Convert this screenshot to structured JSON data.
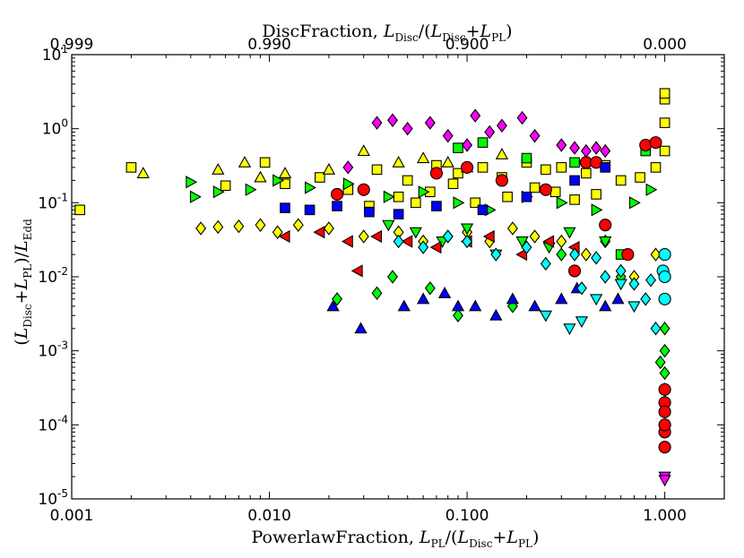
{
  "chart_data": {
    "type": "scatter",
    "xscale": "log",
    "yscale": "log",
    "xlim": [
      0.001,
      2.0
    ],
    "ylim": [
      1e-05,
      10
    ],
    "grid": false,
    "legend": "none",
    "bottom_xlabel": "PowerlawFraction, L_PL/(L_Disc+L_PL)",
    "left_ylabel": "(L_Disc+L_PL)/L_Edd",
    "top_xlabel": "DiscFraction, L_Disc/(L_Disc+L_PL)",
    "xticks": [
      {
        "value": 0.001,
        "label": "0.001"
      },
      {
        "value": 0.01,
        "label": "0.010"
      },
      {
        "value": 0.1,
        "label": "0.100"
      },
      {
        "value": 1.0,
        "label": "1.000"
      }
    ],
    "top_ticks": [
      {
        "value": 0.001,
        "label": "0.999"
      },
      {
        "value": 0.01,
        "label": "0.990"
      },
      {
        "value": 0.1,
        "label": "0.900"
      },
      {
        "value": 1.0,
        "label": "0.000"
      }
    ],
    "yticks": [
      {
        "value": 1e-05,
        "base": "10",
        "exp": "-5"
      },
      {
        "value": 0.0001,
        "base": "10",
        "exp": "-4"
      },
      {
        "value": 0.001,
        "base": "10",
        "exp": "-3"
      },
      {
        "value": 0.01,
        "base": "10",
        "exp": "-2"
      },
      {
        "value": 0.1,
        "base": "10",
        "exp": "-1"
      },
      {
        "value": 1,
        "base": "10",
        "exp": "0"
      },
      {
        "value": 10,
        "base": "10",
        "exp": "1"
      }
    ],
    "series": [
      {
        "name": "yellow-squares",
        "marker": "square",
        "color": "#ffff00",
        "x": [
          0.0011,
          0.002,
          0.006,
          0.0095,
          0.012,
          0.018,
          0.025,
          0.035,
          0.05,
          0.07,
          0.09,
          0.12,
          0.15,
          0.2,
          0.25,
          0.3,
          0.4,
          0.5,
          0.6,
          0.75,
          0.9,
          1.0,
          1.0,
          1.0,
          1.0,
          0.045,
          0.065,
          0.085,
          0.11,
          0.16,
          0.22,
          0.28,
          0.35,
          0.45,
          0.032,
          0.055
        ],
        "y": [
          0.08,
          0.3,
          0.17,
          0.35,
          0.18,
          0.22,
          0.15,
          0.28,
          0.2,
          0.32,
          0.25,
          0.3,
          0.22,
          0.35,
          0.28,
          0.3,
          0.25,
          0.32,
          0.2,
          0.22,
          0.3,
          0.5,
          1.2,
          2.5,
          3.0,
          0.12,
          0.14,
          0.18,
          0.1,
          0.12,
          0.16,
          0.14,
          0.11,
          0.13,
          0.09,
          0.1
        ]
      },
      {
        "name": "yellow-diamonds",
        "marker": "diamond",
        "color": "#ffff00",
        "x": [
          0.0045,
          0.0055,
          0.007,
          0.009,
          0.011,
          0.014,
          0.02,
          0.03,
          0.045,
          0.06,
          0.08,
          0.1,
          0.13,
          0.17,
          0.22,
          0.3,
          0.4,
          0.5,
          0.7,
          0.9
        ],
        "y": [
          0.045,
          0.047,
          0.048,
          0.05,
          0.04,
          0.05,
          0.045,
          0.035,
          0.04,
          0.03,
          0.035,
          0.04,
          0.03,
          0.045,
          0.035,
          0.03,
          0.02,
          0.03,
          0.01,
          0.02
        ]
      },
      {
        "name": "yellow-triangles-up",
        "marker": "triangle-up",
        "color": "#ffff00",
        "x": [
          0.0023,
          0.0055,
          0.0075,
          0.009,
          0.012,
          0.02,
          0.03,
          0.045,
          0.06,
          0.08,
          0.1,
          0.15
        ],
        "y": [
          0.25,
          0.28,
          0.35,
          0.22,
          0.25,
          0.28,
          0.5,
          0.35,
          0.4,
          0.35,
          0.3,
          0.45
        ]
      },
      {
        "name": "green-triangles-right",
        "marker": "triangle-right",
        "color": "#00ff00",
        "x": [
          0.004,
          0.0042,
          0.0055,
          0.008,
          0.011,
          0.016,
          0.025,
          0.04,
          0.06,
          0.09,
          0.13,
          0.2,
          0.3,
          0.45,
          0.7,
          0.85
        ],
        "y": [
          0.19,
          0.12,
          0.14,
          0.15,
          0.2,
          0.16,
          0.18,
          0.12,
          0.14,
          0.1,
          0.08,
          0.12,
          0.1,
          0.08,
          0.1,
          0.15
        ]
      },
      {
        "name": "green-squares",
        "marker": "square",
        "color": "#00ff00",
        "x": [
          0.09,
          0.12,
          0.2,
          0.35,
          0.6,
          0.8
        ],
        "y": [
          0.55,
          0.65,
          0.4,
          0.35,
          0.02,
          0.5
        ]
      },
      {
        "name": "green-diamonds",
        "marker": "diamond",
        "color": "#00ff00",
        "x": [
          0.022,
          0.035,
          0.042,
          0.065,
          0.09,
          0.17,
          0.3,
          0.6,
          0.95,
          1.0,
          1.0,
          1.0,
          1.0,
          1.0,
          1.0
        ],
        "y": [
          0.005,
          0.006,
          0.01,
          0.007,
          0.003,
          0.004,
          0.02,
          0.01,
          0.0007,
          0.002,
          0.0005,
          0.0003,
          0.0002,
          0.00015,
          0.001
        ]
      },
      {
        "name": "green-triangles-down",
        "marker": "triangle-down",
        "color": "#00ff00",
        "x": [
          0.04,
          0.055,
          0.075,
          0.1,
          0.14,
          0.19,
          0.26,
          0.33,
          0.5
        ],
        "y": [
          0.05,
          0.04,
          0.03,
          0.045,
          0.02,
          0.03,
          0.025,
          0.04,
          0.03
        ]
      },
      {
        "name": "red-circles",
        "marker": "circle",
        "color": "#ff0000",
        "x": [
          0.022,
          0.03,
          0.07,
          0.1,
          0.15,
          0.25,
          0.4,
          0.5,
          0.65,
          0.8,
          0.9,
          1.0,
          1.0,
          1.0,
          1.0,
          1.0,
          1.0,
          0.35,
          0.45
        ],
        "y": [
          0.13,
          0.15,
          0.25,
          0.3,
          0.2,
          0.15,
          0.35,
          0.05,
          0.02,
          0.6,
          0.65,
          8e-05,
          5e-05,
          0.0001,
          0.0002,
          0.0003,
          0.00015,
          0.012,
          0.35
        ]
      },
      {
        "name": "red-triangles-left",
        "marker": "triangle-left",
        "color": "#ff0000",
        "x": [
          0.012,
          0.018,
          0.025,
          0.035,
          0.05,
          0.07,
          0.1,
          0.13,
          0.19,
          0.26,
          0.35,
          0.028
        ],
        "y": [
          0.035,
          0.04,
          0.03,
          0.035,
          0.03,
          0.025,
          0.03,
          0.035,
          0.02,
          0.03,
          0.025,
          0.012
        ]
      },
      {
        "name": "magenta-diamonds",
        "marker": "diamond",
        "color": "#ff00ff",
        "x": [
          0.035,
          0.042,
          0.05,
          0.065,
          0.08,
          0.11,
          0.13,
          0.15,
          0.19,
          0.22,
          0.3,
          0.35,
          0.4,
          0.45,
          0.5,
          0.025,
          0.1
        ],
        "y": [
          1.2,
          1.3,
          1.0,
          1.2,
          0.8,
          1.5,
          0.9,
          1.1,
          1.4,
          0.8,
          0.6,
          0.55,
          0.5,
          0.55,
          0.5,
          0.3,
          0.6
        ]
      },
      {
        "name": "magenta-triangles-down",
        "marker": "triangle-down",
        "color": "#ff00ff",
        "x": [
          1.0,
          1.0
        ],
        "y": [
          2e-05,
          1.8e-05
        ]
      },
      {
        "name": "blue-triangles-up",
        "marker": "triangle-up",
        "color": "#0000ff",
        "x": [
          0.021,
          0.029,
          0.048,
          0.06,
          0.077,
          0.09,
          0.11,
          0.14,
          0.17,
          0.22,
          0.3,
          0.36,
          0.5,
          0.58
        ],
        "y": [
          0.004,
          0.002,
          0.004,
          0.005,
          0.006,
          0.004,
          0.004,
          0.003,
          0.005,
          0.004,
          0.005,
          0.007,
          0.004,
          0.005
        ]
      },
      {
        "name": "blue-squares",
        "marker": "square",
        "color": "#0000ff",
        "x": [
          0.012,
          0.016,
          0.022,
          0.032,
          0.045,
          0.07,
          0.12,
          0.2,
          0.35,
          0.5
        ],
        "y": [
          0.085,
          0.08,
          0.09,
          0.075,
          0.07,
          0.09,
          0.08,
          0.12,
          0.2,
          0.3
        ]
      },
      {
        "name": "cyan-diamonds",
        "marker": "diamond",
        "color": "#00ffff",
        "x": [
          0.045,
          0.06,
          0.08,
          0.1,
          0.14,
          0.2,
          0.25,
          0.35,
          0.45,
          0.6,
          0.7,
          0.8,
          0.9,
          0.85,
          0.5,
          0.38
        ],
        "y": [
          0.03,
          0.025,
          0.035,
          0.03,
          0.02,
          0.025,
          0.015,
          0.02,
          0.018,
          0.012,
          0.008,
          0.005,
          0.002,
          0.009,
          0.01,
          0.007
        ]
      },
      {
        "name": "cyan-circles",
        "marker": "circle",
        "color": "#00ffff",
        "x": [
          0.98,
          1.0,
          1.0,
          1.0
        ],
        "y": [
          0.012,
          0.01,
          0.02,
          0.005
        ]
      },
      {
        "name": "cyan-triangles-down",
        "marker": "triangle-down",
        "color": "#00ffff",
        "x": [
          0.25,
          0.33,
          0.45,
          0.6,
          0.7,
          0.38
        ],
        "y": [
          0.003,
          0.002,
          0.005,
          0.008,
          0.004,
          0.0025
        ]
      }
    ]
  }
}
